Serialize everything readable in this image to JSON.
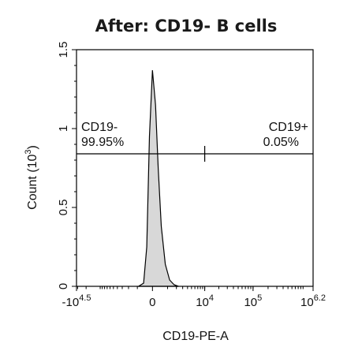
{
  "chart_data": {
    "type": "area",
    "title": "After: CD19- B cells",
    "xlabel": "CD19-PE-A",
    "ylabel": "Count  (10",
    "ylabel_sup": "3",
    "ylabel_end": ")",
    "x_scale": "biexponential",
    "xlim_labels": [
      "-10",
      "10"
    ],
    "x_ticks": [
      {
        "label": "-10",
        "sup": "4.5"
      },
      {
        "label": "0",
        "sup": ""
      },
      {
        "label": "10",
        "sup": "4"
      },
      {
        "label": "10",
        "sup": "5"
      },
      {
        "label": "10",
        "sup": "6.2"
      }
    ],
    "y_ticks": [
      "0",
      "0.5",
      "1",
      "1.5"
    ],
    "ylim": [
      0,
      1.5
    ],
    "peak": {
      "y_value": 1.37
    },
    "histogram": {
      "x": [
        -900,
        -500,
        -300,
        -150,
        0,
        150,
        300,
        500,
        800,
        1200,
        1700,
        2300
      ],
      "y": [
        0,
        0.02,
        0.25,
        0.95,
        1.37,
        1.15,
        0.75,
        0.38,
        0.14,
        0.04,
        0.01,
        0
      ]
    },
    "gates": [
      {
        "name": "CD19-",
        "percent": "99.95%"
      },
      {
        "name": "CD19+",
        "percent": "0.05%"
      }
    ],
    "gate_y": 0.84,
    "gate_divider_x": 10000
  }
}
